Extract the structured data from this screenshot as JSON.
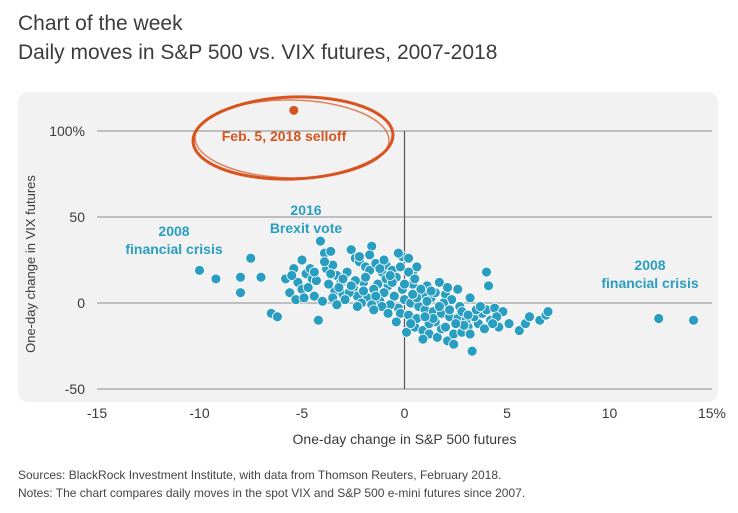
{
  "header": {
    "title": "Chart of the week",
    "subtitle": "Daily moves in S&P 500 vs. VIX futures, 2007-2018"
  },
  "chart_data": {
    "type": "scatter",
    "title": "Daily moves in S&P 500 vs. VIX futures, 2007-2018",
    "xlabel": "One-day change in S&P 500 futures",
    "ylabel": "One-day change in VIX futures",
    "xlim": [
      -15,
      15
    ],
    "ylim": [
      -50,
      100
    ],
    "xticks": [
      {
        "value": -15,
        "label": "-15"
      },
      {
        "value": -10,
        "label": "-10"
      },
      {
        "value": -5,
        "label": "-5"
      },
      {
        "value": 0,
        "label": "0"
      },
      {
        "value": 5,
        "label": "5"
      },
      {
        "value": 10,
        "label": "10"
      },
      {
        "value": 15,
        "label": "15%"
      }
    ],
    "yticks": [
      {
        "value": 100,
        "label": "100%"
      },
      {
        "value": 50,
        "label": "50"
      },
      {
        "value": 0,
        "label": "0"
      },
      {
        "value": -50,
        "label": "-50"
      }
    ],
    "grid": "horizontal",
    "series": [
      {
        "name": "Daily moves",
        "color": "#2a9ec0",
        "points": [
          [
            -10,
            19
          ],
          [
            -9.2,
            14
          ],
          [
            -8,
            15
          ],
          [
            -7.5,
            26
          ],
          [
            -8,
            6
          ],
          [
            -7,
            15
          ],
          [
            -6.5,
            -6
          ],
          [
            -6.2,
            -8
          ],
          [
            -5.8,
            14
          ],
          [
            -5.4,
            20
          ],
          [
            -5.2,
            12
          ],
          [
            -5,
            25
          ],
          [
            -5,
            8
          ],
          [
            -4.8,
            17
          ],
          [
            -4.6,
            20
          ],
          [
            -4.5,
            14
          ],
          [
            -4.2,
            -10
          ],
          [
            -4.1,
            36
          ],
          [
            -3.9,
            29
          ],
          [
            -3.8,
            20
          ],
          [
            -3.6,
            30
          ],
          [
            -3.5,
            22
          ],
          [
            -3.3,
            16
          ],
          [
            -3.1,
            12
          ],
          [
            -2.6,
            31
          ],
          [
            -2.4,
            26
          ],
          [
            -1.6,
            33
          ],
          [
            -2.2,
            24
          ],
          [
            -1.9,
            21
          ],
          [
            -1.7,
            19
          ],
          [
            -1.4,
            23
          ],
          [
            -1.1,
            18
          ],
          [
            -0.9,
            22
          ],
          [
            -0.6,
            19
          ],
          [
            -0.4,
            15
          ],
          [
            -0.1,
            27
          ],
          [
            0.2,
            26
          ],
          [
            0.4,
            17
          ],
          [
            0.6,
            21
          ],
          [
            0.1,
            -17
          ],
          [
            0.5,
            -14
          ],
          [
            0.9,
            -16
          ],
          [
            1.2,
            -18
          ],
          [
            1.6,
            -20
          ],
          [
            2.1,
            -22
          ],
          [
            2.4,
            -18
          ],
          [
            1.8,
            -15
          ],
          [
            2.8,
            -17
          ],
          [
            3.1,
            -14
          ],
          [
            3.3,
            -28
          ],
          [
            3.6,
            -12
          ],
          [
            3.9,
            -15
          ],
          [
            4.2,
            -10
          ],
          [
            4.6,
            -14
          ],
          [
            5.1,
            -12
          ],
          [
            5.6,
            -16
          ],
          [
            5.9,
            -12
          ],
          [
            6.1,
            -8
          ],
          [
            6.6,
            -10
          ],
          [
            6.9,
            -7
          ],
          [
            7.0,
            -5
          ],
          [
            4.1,
            10
          ],
          [
            3.2,
            3
          ],
          [
            2.6,
            8
          ],
          [
            1.7,
            12
          ],
          [
            1.1,
            10
          ],
          [
            2.0,
            5
          ],
          [
            1.3,
            3
          ],
          [
            0.9,
            5
          ],
          [
            -0.8,
            10
          ],
          [
            -1.3,
            11
          ],
          [
            -2.8,
            18
          ],
          [
            -3.4,
            7
          ],
          [
            -4.4,
            4
          ],
          [
            -5.6,
            6
          ],
          [
            -5.3,
            2
          ],
          [
            -4.0,
            1
          ],
          [
            -3.0,
            5
          ],
          [
            -2.5,
            9
          ],
          [
            -2.0,
            12
          ],
          [
            -1.5,
            8
          ],
          [
            -1.0,
            6
          ],
          [
            -0.5,
            4
          ],
          [
            0.0,
            2
          ],
          [
            0.3,
            0
          ],
          [
            0.7,
            -2
          ],
          [
            1.0,
            -4
          ],
          [
            1.4,
            -5
          ],
          [
            1.8,
            -6
          ],
          [
            2.2,
            -8
          ],
          [
            2.6,
            -9
          ],
          [
            3.0,
            -10
          ],
          [
            3.4,
            -8
          ],
          [
            3.8,
            -6
          ],
          [
            4.0,
            -4
          ],
          [
            4.4,
            -3
          ],
          [
            4.8,
            -5
          ],
          [
            -0.3,
            -3
          ],
          [
            -0.7,
            -1
          ],
          [
            -1.2,
            1
          ],
          [
            -1.8,
            3
          ],
          [
            -2.3,
            4
          ],
          [
            -2.7,
            6
          ],
          [
            -3.2,
            9
          ],
          [
            -3.7,
            11
          ],
          [
            -4.3,
            13
          ],
          [
            -4.7,
            9
          ],
          [
            -0.2,
            -6
          ],
          [
            0.2,
            -7
          ],
          [
            0.6,
            -9
          ],
          [
            1.5,
            -11
          ],
          [
            2.9,
            -13
          ],
          [
            -1.1,
            -2
          ],
          [
            -1.6,
            -1
          ],
          [
            -2.1,
            0
          ],
          [
            -2.9,
            2
          ],
          [
            -3.5,
            3
          ],
          [
            -0.9,
            14
          ],
          [
            -1.9,
            15
          ],
          [
            -2.4,
            13
          ],
          [
            0.8,
            8
          ],
          [
            0.4,
            11
          ],
          [
            1.5,
            6
          ],
          [
            2.3,
            2
          ],
          [
            1.9,
            0
          ],
          [
            2.7,
            -2
          ],
          [
            3.5,
            -4
          ],
          [
            0.6,
            3
          ],
          [
            -0.1,
            8
          ],
          [
            -0.6,
            12
          ],
          [
            1.2,
            -12
          ],
          [
            2.0,
            -14
          ],
          [
            2.5,
            -12
          ],
          [
            3.2,
            -18
          ],
          [
            -0.4,
            -11
          ],
          [
            0.9,
            -21
          ],
          [
            1.4,
            -9
          ],
          [
            3.7,
            -2
          ],
          [
            4.5,
            -8
          ],
          [
            4.3,
            -12
          ],
          [
            -1.4,
            4
          ],
          [
            -2.0,
            7
          ],
          [
            -2.6,
            10
          ],
          [
            -3.0,
            14
          ],
          [
            -3.6,
            17
          ],
          [
            -4.4,
            18
          ],
          [
            -0.2,
            21
          ],
          [
            0.2,
            18
          ],
          [
            -0.7,
            16
          ],
          [
            -1.2,
            20
          ],
          [
            -1.0,
            25
          ],
          [
            -0.3,
            29
          ],
          [
            0.5,
            14
          ],
          [
            0.0,
            11
          ],
          [
            -3.9,
            24
          ],
          [
            -2.2,
            27
          ],
          [
            -1.7,
            28
          ],
          [
            -5.5,
            16
          ],
          [
            -4.9,
            3
          ],
          [
            -3.3,
            -1
          ],
          [
            1.1,
            1
          ],
          [
            1.7,
            -2
          ],
          [
            2.2,
            -4
          ],
          [
            2.8,
            -5
          ],
          [
            3.1,
            -7
          ],
          [
            0.3,
            -12
          ],
          [
            1.0,
            -8
          ],
          [
            2.4,
            -24
          ],
          [
            -2.3,
            -2
          ],
          [
            -1.5,
            -4
          ],
          [
            -0.8,
            -6
          ],
          [
            0.4,
            5
          ],
          [
            1.3,
            7
          ],
          [
            2.1,
            9
          ],
          [
            4.0,
            18
          ]
        ]
      },
      {
        "name": "Feb. 5, 2018 selloff",
        "color": "#d9531e",
        "points": [
          [
            -5.4,
            112
          ]
        ]
      }
    ],
    "annotations": [
      {
        "id": "feb5",
        "text": "Feb. 5, 2018 selloff",
        "color": "#d9531e"
      },
      {
        "id": "left_crisis",
        "line1": "2008",
        "line2": "financial crisis",
        "color": "#2a9ec0"
      },
      {
        "id": "brexit",
        "line1": "2016",
        "line2": "Brexit vote",
        "color": "#2a9ec0"
      },
      {
        "id": "right_crisis_series",
        "points": [
          [
            12.4,
            -9
          ],
          [
            14.1,
            -10
          ]
        ]
      },
      {
        "id": "right_crisis",
        "line1": "2008",
        "line2": "financial crisis",
        "color": "#2a9ec0"
      }
    ]
  },
  "footer": {
    "sources": "Sources: BlackRock Investment Institute, with data from Thomson Reuters, February 2018.",
    "notes": "Notes: The chart compares daily moves in the spot VIX and S&P 500 e-mini futures since 2007."
  },
  "colors": {
    "panel": "#f2f2f2",
    "grid": "#8a8a8a",
    "axis": "#555555"
  }
}
